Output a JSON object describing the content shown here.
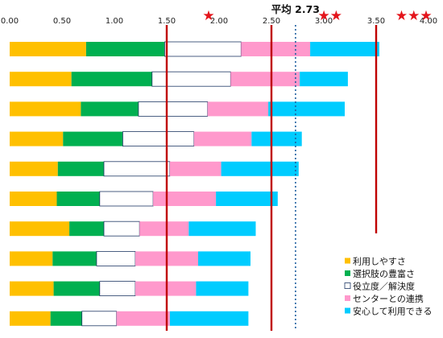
{
  "chart_data": {
    "type": "bar",
    "orientation": "horizontal",
    "stacked": true,
    "xlim": [
      0,
      4
    ],
    "xticks": [
      "0.00",
      "0.50",
      "1.00",
      "1.50",
      "2.00",
      "2.50",
      "3.00",
      "3.50",
      "4.00"
    ],
    "grid": false,
    "legend_position": "bottom-right",
    "series": [
      {
        "name": "利用しやすさ",
        "color": "#ffc000",
        "values": [
          0.73,
          0.59,
          0.68,
          0.51,
          0.46,
          0.45,
          0.57,
          0.41,
          0.42,
          0.39
        ]
      },
      {
        "name": "選択肢の豊富さ",
        "color": "#00b050",
        "values": [
          0.75,
          0.77,
          0.55,
          0.57,
          0.44,
          0.41,
          0.33,
          0.42,
          0.44,
          0.3
        ]
      },
      {
        "name": "役立度／解決度",
        "color": "#ffffff",
        "values": [
          0.73,
          0.75,
          0.66,
          0.68,
          0.63,
          0.51,
          0.34,
          0.37,
          0.34,
          0.33
        ]
      },
      {
        "name": "センターとの連携",
        "color": "#ff99cc",
        "values": [
          0.66,
          0.66,
          0.58,
          0.55,
          0.49,
          0.6,
          0.47,
          0.6,
          0.58,
          0.51
        ]
      },
      {
        "name": "安心して利用できる",
        "color": "#00ccff",
        "values": [
          0.66,
          0.46,
          0.73,
          0.48,
          0.74,
          0.59,
          0.64,
          0.5,
          0.5,
          0.75
        ]
      }
    ],
    "reference_lines": [
      {
        "value": 1.5,
        "style": "solid",
        "color": "#c00000"
      },
      {
        "value": 2.5,
        "style": "solid",
        "color": "#c00000"
      },
      {
        "value": 2.73,
        "style": "dotted",
        "color": "#1f5fa0",
        "label": "平均 2.73"
      },
      {
        "value": 3.5,
        "style": "solid",
        "color": "#c00000"
      }
    ],
    "star_ratings": [
      {
        "x": 1.9,
        "text": "★"
      },
      {
        "x": 3.06,
        "text": "★★"
      },
      {
        "x": 3.86,
        "text": "★★★"
      }
    ]
  }
}
